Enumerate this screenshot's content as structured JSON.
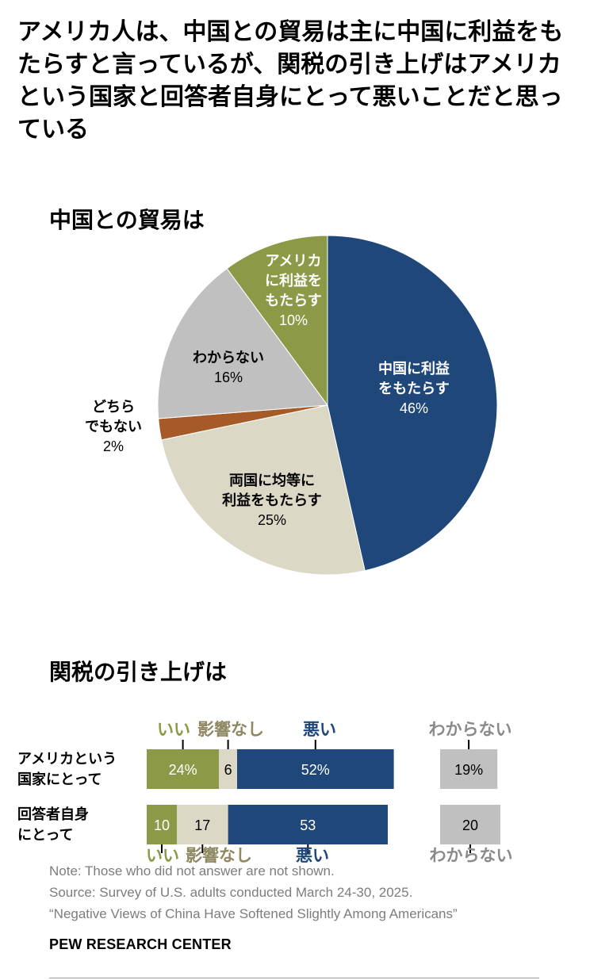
{
  "title": "アメリカ人は、中国との貿易は主に中国に利益をもたらすと言っているが、関税の引き上げはアメリカという国家と回答者自身にとって悪いことだと思っている",
  "colors": {
    "china": "#1f477a",
    "usa": "#8c9a48",
    "equal": "#dcd8c6",
    "neither": "#a65a27",
    "unsure": "#c0c0c0",
    "good_text": "#8c9a48",
    "no_effect_text": "#8f8862",
    "bad_text": "#1f477a",
    "unsure_text": "#8a8a8a"
  },
  "chart_data": [
    {
      "type": "pie",
      "title": "中国との貿易は",
      "slices": [
        {
          "label": [
            "中国に利益",
            "をもたらす"
          ],
          "value": 46,
          "value_label": "46%"
        },
        {
          "label": [
            "両国に均等に",
            "利益をもたらす"
          ],
          "value": 25,
          "value_label": "25%"
        },
        {
          "label": [
            "どちら",
            "でもない"
          ],
          "value": 2,
          "value_label": "2%"
        },
        {
          "label": [
            "わからない"
          ],
          "value": 16,
          "value_label": "16%"
        },
        {
          "label": [
            "アメリカ",
            "に利益を",
            "もたらす"
          ],
          "value": 10,
          "value_label": "10%"
        }
      ]
    },
    {
      "type": "bar",
      "title": "関税の引き上げは",
      "categories": [
        [
          "アメリカという",
          "国家にとって"
        ],
        [
          "回答者自身",
          "にとって"
        ]
      ],
      "series": [
        {
          "name": "いい",
          "values": [
            24,
            10
          ],
          "value_labels": [
            "24%",
            "10"
          ]
        },
        {
          "name": "影響なし",
          "values": [
            6,
            17
          ],
          "value_labels": [
            "6",
            "17"
          ]
        },
        {
          "name": "悪い",
          "values": [
            52,
            53
          ],
          "value_labels": [
            "52%",
            "53"
          ]
        },
        {
          "name": "わからない",
          "values": [
            19,
            20
          ],
          "value_labels": [
            "19%",
            "20"
          ]
        }
      ]
    }
  ],
  "note": "Note: Those who did not answer are not shown.",
  "source": "Source: Survey of U.S. adults conducted March 24-30, 2025.",
  "report": "“Negative Views of China Have Softened Slightly Among Americans”",
  "brand": "PEW RESEARCH CENTER"
}
